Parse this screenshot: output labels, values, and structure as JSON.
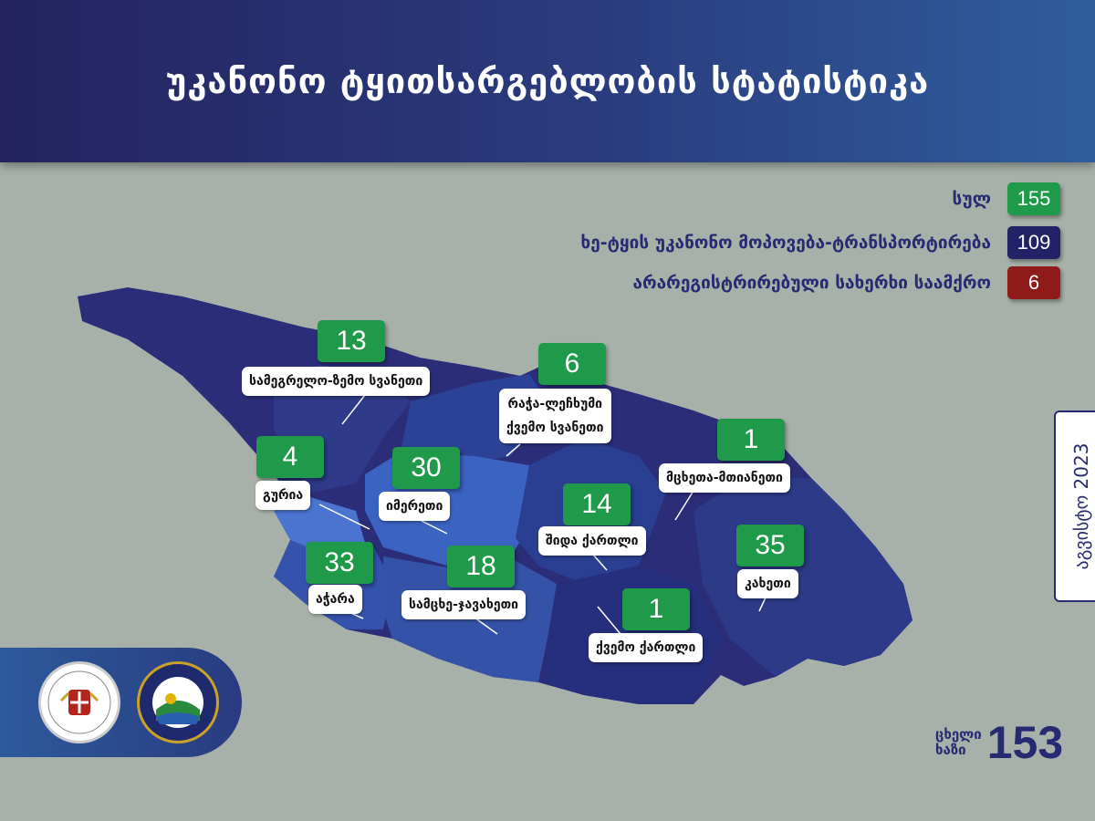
{
  "title": "უკანონო ტყითსარგებლობის სტატისტიკა",
  "legend": [
    {
      "label": "სულ",
      "value": "155",
      "color": "#1f9a4b"
    },
    {
      "label": "ხე-ტყის უკანონო მოპოვება-ტრანსპორტირება",
      "value": "109",
      "color": "#232266"
    },
    {
      "label": "არარეგისტრირებული სახერხი საამქრო",
      "value": "6",
      "color": "#8e1a1a"
    }
  ],
  "regions": [
    {
      "name": "სამეგრელო-ზემო სვანეთი",
      "value": "13"
    },
    {
      "name": "რაჭა-ლეჩხუმი",
      "name2": "ქვემო სვანეთი",
      "value": "6"
    },
    {
      "name": "მცხეთა-მთიანეთი",
      "value": "1"
    },
    {
      "name": "გურია",
      "value": "4"
    },
    {
      "name": "იმერეთი",
      "value": "30"
    },
    {
      "name": "შიდა ქართლი",
      "value": "14"
    },
    {
      "name": "კახეთი",
      "value": "35"
    },
    {
      "name": "აჭარა",
      "value": "33"
    },
    {
      "name": "სამცხე-ჯავახეთი",
      "value": "18"
    },
    {
      "name": "ქვემო ქართლი",
      "value": "1"
    }
  ],
  "period": "აგვისტო 2023",
  "hotline": {
    "line1": "ცხელი",
    "line2": "ხაზი",
    "number": "153"
  }
}
